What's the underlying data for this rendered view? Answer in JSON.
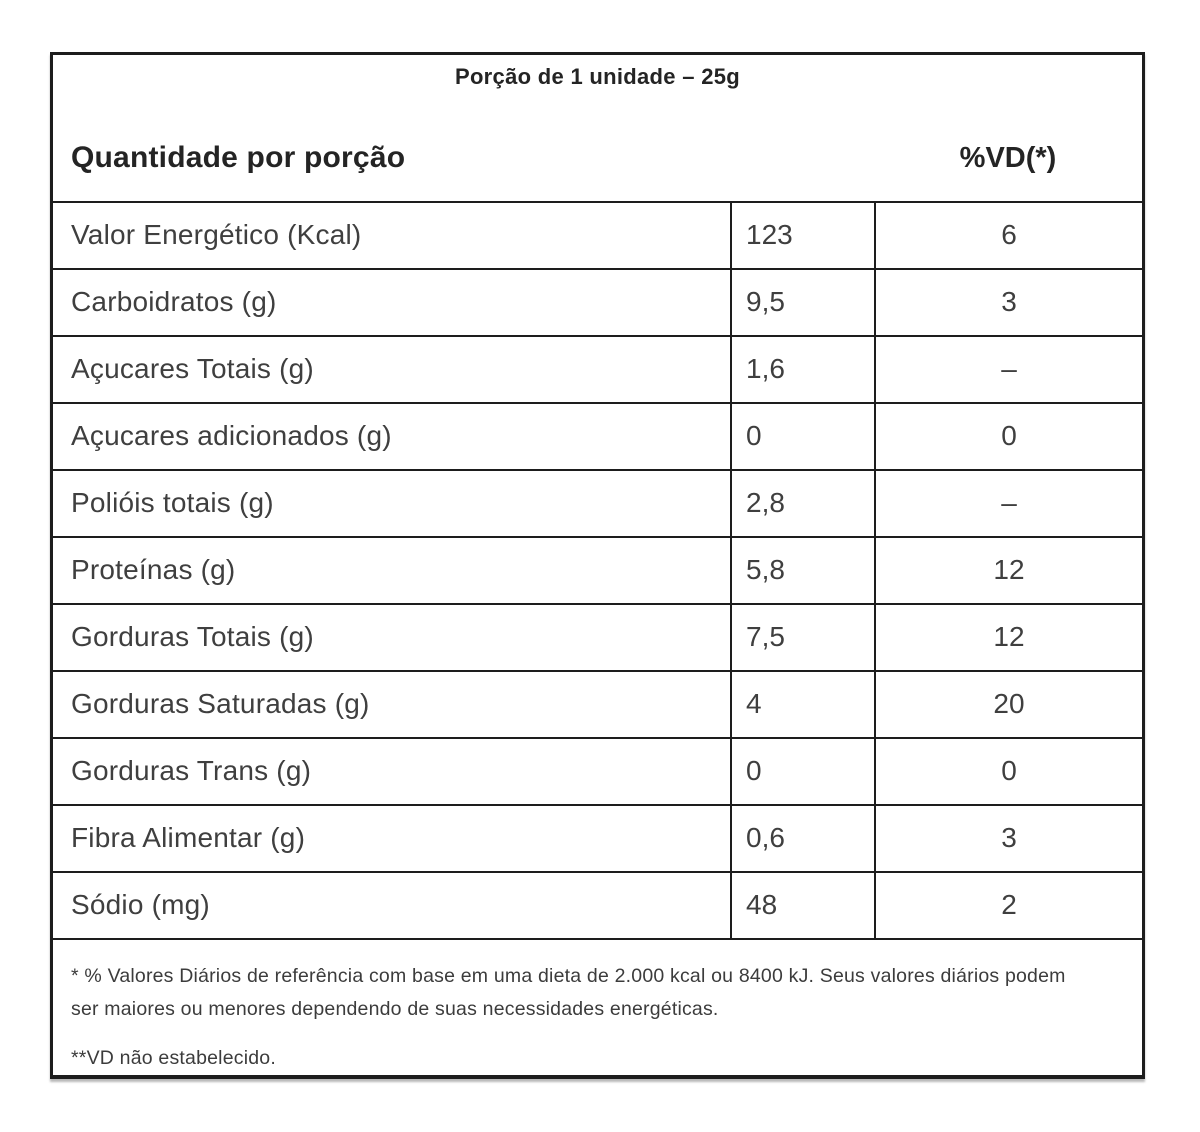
{
  "header": {
    "serving_title": "Porção de 1 unidade – 25g",
    "quantity_label": "Quantidade por porção",
    "vd_label": "%VD(*)"
  },
  "table": {
    "rows": [
      {
        "label": "Valor Energético (Kcal)",
        "amount": "123",
        "vd": "6"
      },
      {
        "label": "Carboidratos (g)",
        "amount": "9,5",
        "vd": "3"
      },
      {
        "label": "Açucares Totais (g)",
        "amount": "1,6",
        "vd": "–"
      },
      {
        "label": "Açucares adicionados (g)",
        "amount": "0",
        "vd": "0"
      },
      {
        "label": "Polióis totais (g)",
        "amount": "2,8",
        "vd": "–"
      },
      {
        "label": "Proteínas (g)",
        "amount": "5,8",
        "vd": "12"
      },
      {
        "label": "Gorduras Totais (g)",
        "amount": "7,5",
        "vd": "12"
      },
      {
        "label": "Gorduras Saturadas (g)",
        "amount": "4",
        "vd": "20"
      },
      {
        "label": "Gorduras Trans (g)",
        "amount": "0",
        "vd": "0"
      },
      {
        "label": "Fibra Alimentar (g)",
        "amount": "0,6",
        "vd": "3"
      },
      {
        "label": "Sódio (mg)",
        "amount": "48",
        "vd": "2"
      }
    ]
  },
  "footnotes": {
    "daily_values": "* % Valores Diários de referência com base em uma dieta de 2.000 kcal ou 8400 kJ. Seus valores diários podem ser maiores ou menores dependendo de suas necessidades energéticas.",
    "vd_not_established": "**VD não estabelecido."
  },
  "colors": {
    "border": "#1d1d1d",
    "text": "#3f3f3f",
    "heading_text": "#242424",
    "background": "#ffffff"
  }
}
